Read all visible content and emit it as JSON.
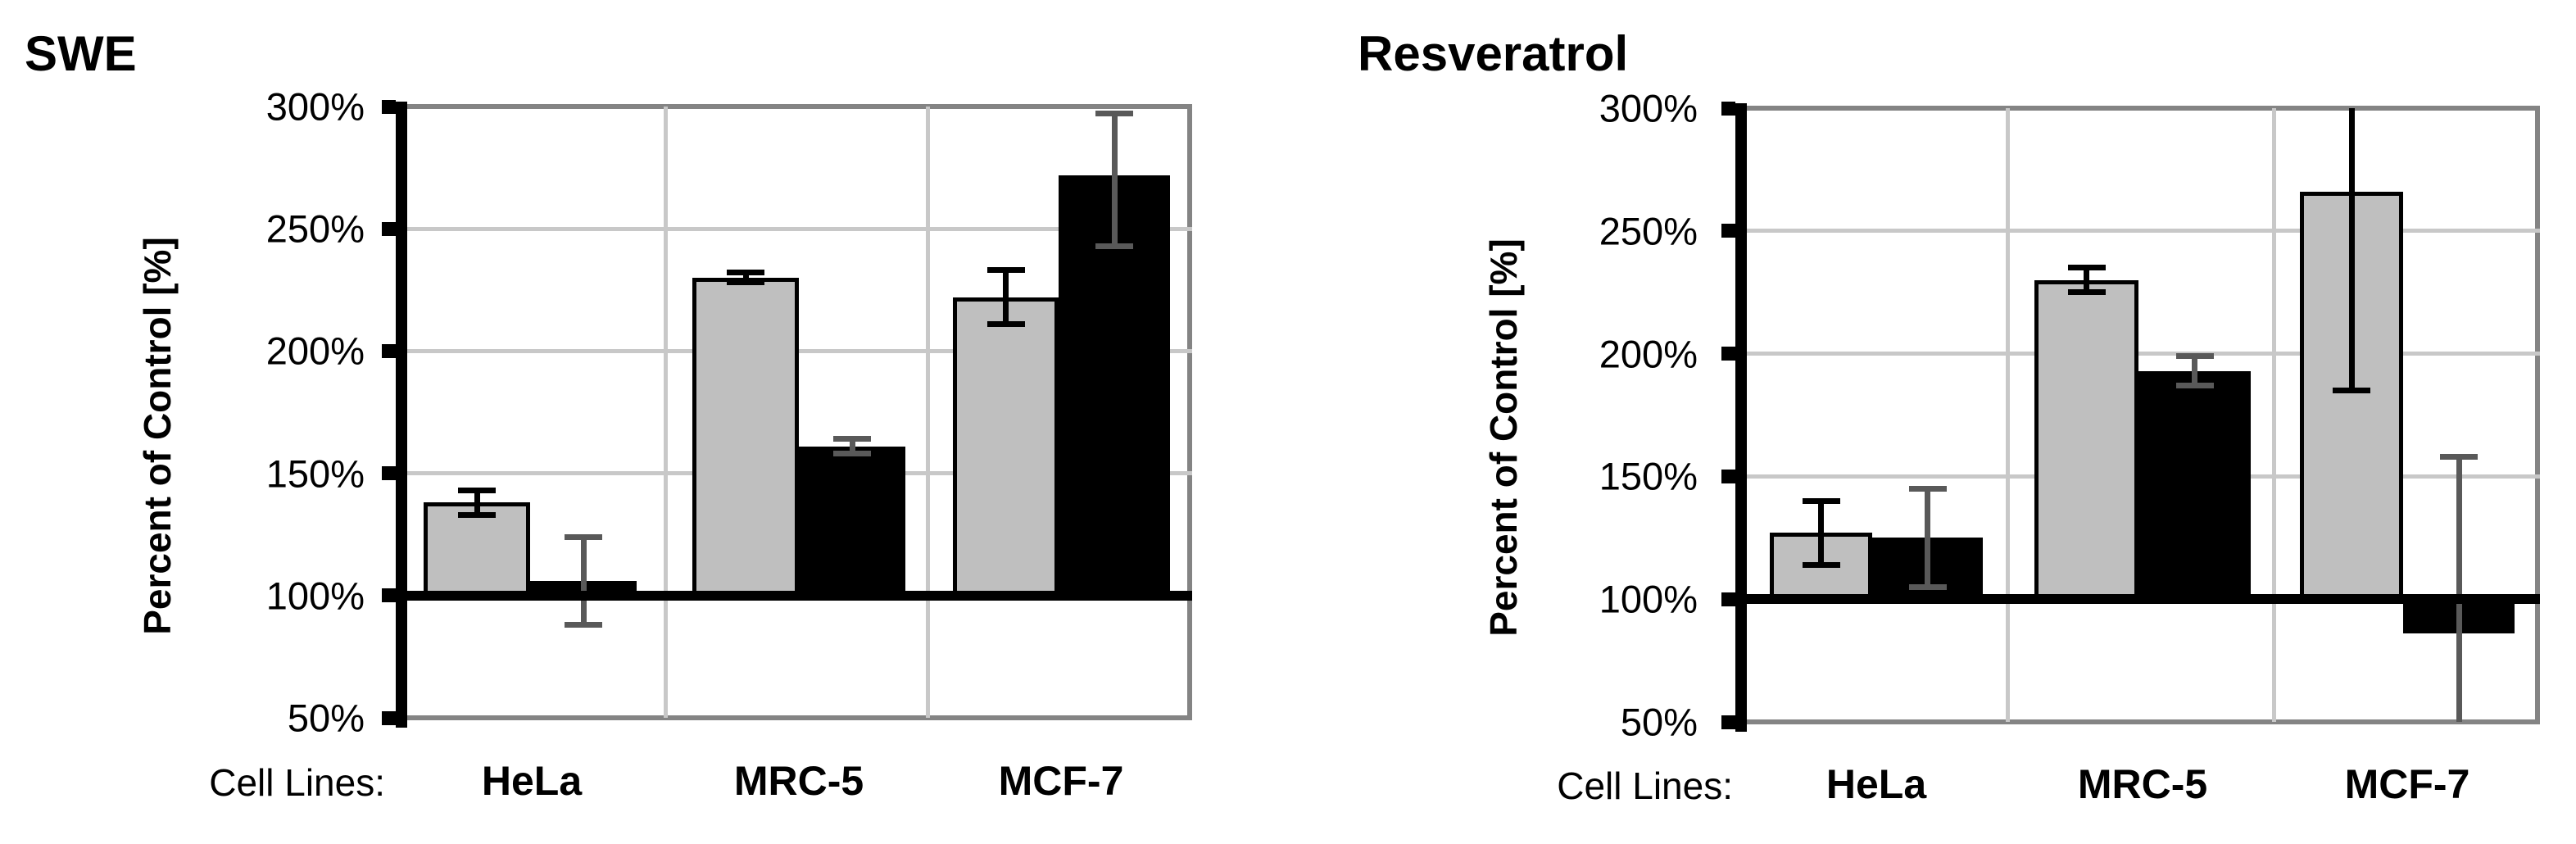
{
  "figure": {
    "background": "#ffffff",
    "bar_fill_gray": "#bfbfbf",
    "bar_fill_black": "#000000",
    "gridline_color": "#c8c8c8",
    "border_color": "#848484",
    "baseline_color": "#000000",
    "error_color_on_gray": "#000000",
    "error_color_on_black": "#595959"
  },
  "chart_data": [
    {
      "type": "bar",
      "title": "SWE",
      "ylabel": "Percent of Control [%]",
      "xlabel": "Cell Lines:",
      "categories": [
        "HeLa",
        "MRC-5",
        "MCF-7"
      ],
      "ytick_labels": [
        "300%",
        "250%",
        "200%",
        "150%",
        "100%",
        "50%"
      ],
      "ytick_values": [
        300,
        250,
        200,
        150,
        100,
        50
      ],
      "ylim": [
        50,
        300
      ],
      "baseline": 100,
      "grid": true,
      "legend": "none",
      "series": [
        {
          "name": "gray-bars",
          "color": "#bfbfbf",
          "err_color": "#000000",
          "values": [
            138,
            230,
            222
          ],
          "err_low": [
            133,
            228,
            211
          ],
          "err_high": [
            143,
            232,
            233
          ],
          "cap_low": [
            true,
            true,
            true
          ],
          "cap_high": [
            true,
            true,
            true
          ]
        },
        {
          "name": "black-bars",
          "color": "#000000",
          "err_color": "#595959",
          "values": [
            106,
            161,
            272
          ],
          "err_low": [
            88,
            158,
            243
          ],
          "err_high": [
            124,
            164,
            297
          ],
          "cap_low": [
            true,
            true,
            true
          ],
          "cap_high": [
            true,
            true,
            true
          ]
        }
      ]
    },
    {
      "type": "bar",
      "title": "Resveratrol",
      "ylabel": "Percent of Control [%]",
      "xlabel": "Cell Lines:",
      "categories": [
        "HeLa",
        "MRC-5",
        "MCF-7"
      ],
      "ytick_labels": [
        "300%",
        "250%",
        "200%",
        "150%",
        "100%",
        "50%"
      ],
      "ytick_values": [
        300,
        250,
        200,
        150,
        100,
        50
      ],
      "ylim": [
        50,
        300
      ],
      "baseline": 100,
      "grid": true,
      "legend": "none",
      "series": [
        {
          "name": "gray-bars",
          "color": "#bfbfbf",
          "err_color": "#000000",
          "values": [
            127,
            230,
            266
          ],
          "err_low": [
            114,
            225,
            185
          ],
          "err_high": [
            140,
            235,
            300
          ],
          "cap_low": [
            true,
            true,
            true
          ],
          "cap_high": [
            true,
            true,
            false
          ]
        },
        {
          "name": "black-bars",
          "color": "#000000",
          "err_color": "#595959",
          "values": [
            125,
            193,
            88
          ],
          "err_low": [
            105,
            187,
            50
          ],
          "err_high": [
            145,
            199,
            158
          ],
          "cap_low": [
            true,
            true,
            false
          ],
          "cap_high": [
            true,
            true,
            true
          ]
        }
      ]
    }
  ]
}
